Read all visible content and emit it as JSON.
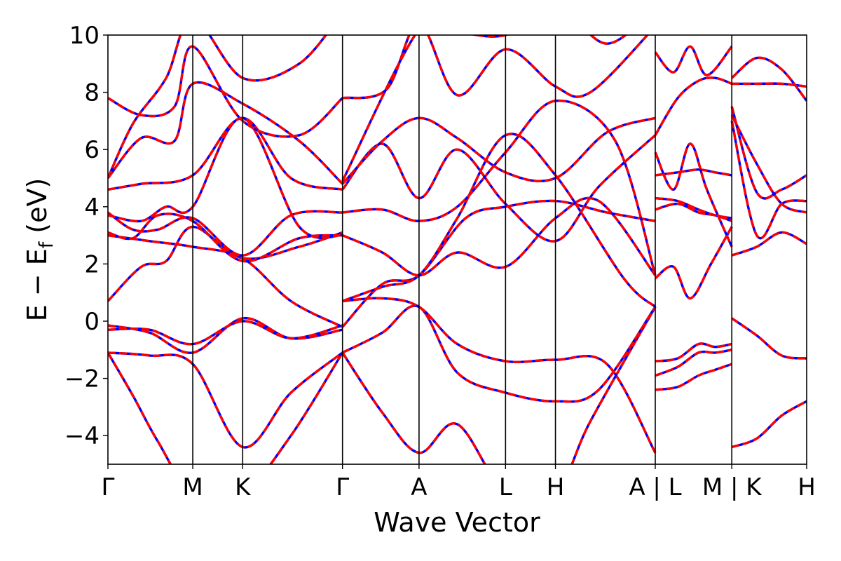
{
  "chart_data": {
    "type": "line",
    "xlabel": "Wave Vector",
    "ylabel": {
      "prefix": "E − E",
      "sub": "f",
      "suffix": " (eV)"
    },
    "ylim": [
      -5,
      10
    ],
    "yticks": [
      -4,
      -2,
      0,
      2,
      4,
      6,
      8,
      10
    ],
    "ytick_labels": [
      "−4",
      "−2",
      "0",
      "2",
      "4",
      "6",
      "8",
      "10"
    ],
    "xlim": [
      0,
      8.4
    ],
    "kpoints": [
      {
        "x": 0.0,
        "label": "Γ"
      },
      {
        "x": 1.02,
        "label": "M"
      },
      {
        "x": 1.62,
        "label": "K"
      },
      {
        "x": 2.82,
        "label": "Γ"
      },
      {
        "x": 3.74,
        "label": "A"
      },
      {
        "x": 4.78,
        "label": "L"
      },
      {
        "x": 5.38,
        "label": "H"
      },
      {
        "x": 6.58,
        "label": "A | L"
      },
      {
        "x": 7.5,
        "label": "M | K"
      },
      {
        "x": 8.4,
        "label": "H"
      }
    ],
    "grid": false,
    "series_styles": [
      {
        "color": "#0000ff",
        "style": "solid"
      },
      {
        "color": "#ff0000",
        "style": "dashed"
      }
    ],
    "segments": [
      {
        "from": 0,
        "to": 3,
        "bands": [
          {
            "x": [
              0,
              0.3,
              0.6,
              1.02,
              1.62,
              2.2,
              2.82
            ],
            "y": [
              -1.1,
              -2.6,
              -4.2,
              -6,
              -6,
              -4,
              -1.1
            ]
          },
          {
            "x": [
              0,
              0.5,
              1.02,
              1.62,
              2.2,
              2.82
            ],
            "y": [
              -1.1,
              -1.2,
              -1.5,
              -4.4,
              -2.5,
              -1.1
            ]
          },
          {
            "x": [
              0,
              0.5,
              1.02,
              1.62,
              2.2,
              2.82
            ],
            "y": [
              -0.15,
              -0.4,
              -1.1,
              0.1,
              -0.6,
              -0.3
            ]
          },
          {
            "x": [
              0,
              0.5,
              1.02,
              1.62,
              2.2,
              2.82
            ],
            "y": [
              -0.3,
              -0.3,
              -0.8,
              0.0,
              -0.6,
              -0.15
            ]
          },
          {
            "x": [
              0,
              0.4,
              0.7,
              1.02,
              1.62,
              2.3,
              2.82
            ],
            "y": [
              0.7,
              1.9,
              2.1,
              3.3,
              2.2,
              2.6,
              3.1
            ]
          },
          {
            "x": [
              0,
              0.5,
              1.02,
              1.62,
              2.2,
              2.82
            ],
            "y": [
              3.0,
              2.8,
              2.6,
              2.2,
              0.7,
              -0.2
            ]
          },
          {
            "x": [
              0,
              0.3,
              0.6,
              1.02,
              1.62,
              2.3,
              2.82
            ],
            "y": [
              3.1,
              2.9,
              3.7,
              3.5,
              2.1,
              2.9,
              3.0
            ]
          },
          {
            "x": [
              0,
              0.3,
              0.6,
              1.02,
              1.62,
              2.2,
              2.82
            ],
            "y": [
              3.8,
              3.2,
              3.2,
              3.6,
              2.3,
              3.7,
              3.8
            ]
          },
          {
            "x": [
              0,
              0.4,
              0.7,
              1.02,
              1.62,
              2.3,
              2.82
            ],
            "y": [
              3.7,
              3.5,
              4.0,
              4.0,
              7.1,
              3.3,
              3.0
            ]
          },
          {
            "x": [
              0,
              0.4,
              1.02,
              1.62,
              2.2,
              2.82
            ],
            "y": [
              4.6,
              4.8,
              5.1,
              7.1,
              5.0,
              4.6
            ]
          },
          {
            "x": [
              0,
              0.4,
              0.8,
              1.02,
              1.62,
              2.3,
              2.82
            ],
            "y": [
              5.0,
              6.4,
              6.3,
              8.3,
              7.6,
              6.3,
              4.8
            ]
          },
          {
            "x": [
              0,
              0.4,
              0.8,
              1.02,
              1.62,
              2.3,
              2.82
            ],
            "y": [
              7.8,
              7.2,
              7.5,
              9.6,
              7.0,
              6.5,
              7.8
            ]
          },
          {
            "x": [
              0,
              0.3,
              0.7,
              1.02,
              1.62,
              2.3,
              2.82
            ],
            "y": [
              5.0,
              6.9,
              8.5,
              10.6,
              8.5,
              9.0,
              10.8
            ]
          }
        ]
      },
      {
        "from": 3,
        "to": 7,
        "bands": [
          {
            "x": [
              2.82,
              3.3,
              3.74,
              4.2,
              4.78,
              5.38,
              5.8,
              6.58
            ],
            "y": [
              -1.1,
              -3.2,
              -4.6,
              -3.6,
              -6,
              -6,
              -3.5,
              0.5
            ]
          },
          {
            "x": [
              2.82,
              3.3,
              3.74,
              4.2,
              4.78,
              5.38,
              5.9,
              6.58
            ],
            "y": [
              -1.1,
              -0.4,
              0.5,
              -1.8,
              -2.5,
              -2.8,
              -2.4,
              0.5
            ]
          },
          {
            "x": [
              2.82,
              3.3,
              3.74,
              4.2,
              4.78,
              5.38,
              6.0,
              6.58
            ],
            "y": [
              0.7,
              0.8,
              0.5,
              -0.8,
              -1.4,
              -1.35,
              -1.5,
              -4.6
            ]
          },
          {
            "x": [
              2.82,
              3.3,
              3.74,
              4.3,
              4.78,
              5.38,
              6.0,
              6.58
            ],
            "y": [
              -0.2,
              1.3,
              1.6,
              3.6,
              4.0,
              4.2,
              3.8,
              3.5
            ]
          },
          {
            "x": [
              2.82,
              3.3,
              3.74,
              4.2,
              4.78,
              5.38,
              6.2,
              6.58
            ],
            "y": [
              0.7,
              1.2,
              1.6,
              3.6,
              6.5,
              5.1,
              1.5,
              0.5
            ]
          },
          {
            "x": [
              2.82,
              3.3,
              3.74,
              4.2,
              4.78,
              5.38,
              6.1,
              6.58
            ],
            "y": [
              3.8,
              3.9,
              3.5,
              4.0,
              5.9,
              7.7,
              6.3,
              1.6
            ]
          },
          {
            "x": [
              2.82,
              3.3,
              3.74,
              4.2,
              4.78,
              5.38,
              5.9,
              6.58
            ],
            "y": [
              3.0,
              2.4,
              1.6,
              2.4,
              1.9,
              3.6,
              4.2,
              1.6
            ]
          },
          {
            "x": [
              2.82,
              3.3,
              3.74,
              4.2,
              4.78,
              5.38,
              5.9,
              6.58
            ],
            "y": [
              4.6,
              6.2,
              4.3,
              6.0,
              4.1,
              2.8,
              4.7,
              6.5
            ]
          },
          {
            "x": [
              2.82,
              3.3,
              3.74,
              4.2,
              4.78,
              5.38,
              6.0,
              6.58
            ],
            "y": [
              4.8,
              6.3,
              7.1,
              6.4,
              5.2,
              5.0,
              6.6,
              7.1
            ]
          },
          {
            "x": [
              2.82,
              3.35,
              3.74,
              4.2,
              4.78,
              5.38,
              5.8,
              6.58
            ],
            "y": [
              7.8,
              8.1,
              10.4,
              7.9,
              9.5,
              8.2,
              8.0,
              10.3
            ]
          },
          {
            "x": [
              2.82,
              3.74,
              4.2,
              4.78,
              5.38,
              6.0,
              6.58
            ],
            "y": [
              4.9,
              10.2,
              10.1,
              10.0,
              11.0,
              9.7,
              11.0
            ]
          }
        ]
      },
      {
        "from": 7,
        "to": 8,
        "bands": [
          {
            "x": [
              6.58,
              6.85,
              7.1,
              7.3,
              7.5
            ],
            "y": [
              -2.4,
              -2.3,
              -1.9,
              -1.7,
              -1.5
            ]
          },
          {
            "x": [
              6.58,
              6.85,
              7.1,
              7.3,
              7.5
            ],
            "y": [
              -1.4,
              -1.3,
              -0.8,
              -0.9,
              -0.8
            ]
          },
          {
            "x": [
              6.58,
              6.85,
              7.1,
              7.3,
              7.5
            ],
            "y": [
              -1.9,
              -1.6,
              -1.1,
              -1.1,
              -1.0
            ]
          },
          {
            "x": [
              6.58,
              6.8,
              7.0,
              7.25,
              7.5
            ],
            "y": [
              1.5,
              1.9,
              0.8,
              2.0,
              3.3
            ]
          },
          {
            "x": [
              6.58,
              6.85,
              7.1,
              7.3,
              7.5
            ],
            "y": [
              3.9,
              4.1,
              3.8,
              3.7,
              3.5
            ]
          },
          {
            "x": [
              6.58,
              6.85,
              7.1,
              7.3,
              7.5
            ],
            "y": [
              4.3,
              4.2,
              3.9,
              3.7,
              3.6
            ]
          },
          {
            "x": [
              6.58,
              6.85,
              7.1,
              7.3,
              7.5
            ],
            "y": [
              5.1,
              5.2,
              5.3,
              5.2,
              5.1
            ]
          },
          {
            "x": [
              6.58,
              6.8,
              7.0,
              7.2,
              7.5
            ],
            "y": [
              5.9,
              4.6,
              6.2,
              4.6,
              2.6
            ]
          },
          {
            "x": [
              6.58,
              6.85,
              7.1,
              7.3,
              7.5
            ],
            "y": [
              6.5,
              7.8,
              8.4,
              8.5,
              8.3
            ]
          },
          {
            "x": [
              6.58,
              6.8,
              7.0,
              7.2,
              7.5
            ],
            "y": [
              9.4,
              8.7,
              9.6,
              8.6,
              9.6
            ]
          }
        ]
      },
      {
        "from": 8,
        "to": 9,
        "bands": [
          {
            "x": [
              7.5,
              7.8,
              8.1,
              8.4
            ],
            "y": [
              -4.4,
              -4.1,
              -3.3,
              -2.8
            ]
          },
          {
            "x": [
              7.5,
              7.8,
              8.1,
              8.4
            ],
            "y": [
              0.1,
              -0.5,
              -1.2,
              -1.3
            ]
          },
          {
            "x": [
              7.5,
              7.8,
              8.1,
              8.4
            ],
            "y": [
              2.3,
              2.6,
              3.1,
              2.7
            ]
          },
          {
            "x": [
              7.5,
              7.8,
              8.1,
              8.4
            ],
            "y": [
              7.2,
              5.5,
              4.1,
              3.8
            ]
          },
          {
            "x": [
              7.5,
              7.8,
              8.1,
              8.4
            ],
            "y": [
              7.5,
              4.5,
              4.6,
              5.1
            ]
          },
          {
            "x": [
              7.5,
              7.8,
              8.1,
              8.4
            ],
            "y": [
              8.3,
              8.3,
              8.3,
              8.2
            ]
          },
          {
            "x": [
              7.5,
              7.8,
              8.1,
              8.4
            ],
            "y": [
              8.5,
              9.2,
              8.8,
              7.7
            ]
          },
          {
            "x": [
              7.5,
              7.8,
              8.1,
              8.4
            ],
            "y": [
              7.0,
              3.0,
              4.1,
              4.2
            ]
          }
        ]
      }
    ]
  }
}
